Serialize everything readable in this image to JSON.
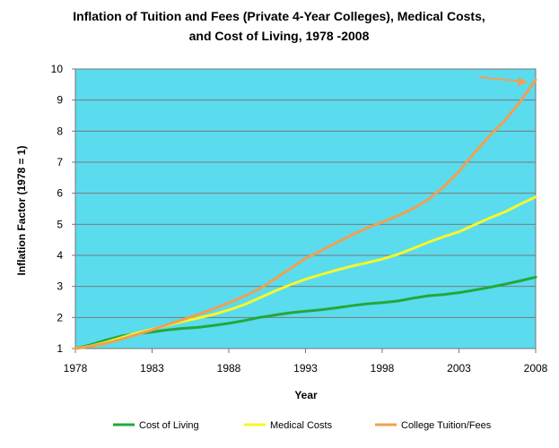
{
  "chart_data": {
    "type": "line",
    "title_line1": "Inflation of Tuition  and Fees (Private 4-Year Colleges), Medical Costs,",
    "title_line2": "and Cost of Living, 1978 -2008",
    "xlabel": "Year",
    "ylabel": "Inflation Factor (1978 = 1)",
    "xlim": [
      1978,
      2008
    ],
    "ylim": [
      1,
      10
    ],
    "xticks": [
      "1978",
      "1983",
      "1988",
      "1993",
      "1998",
      "2003",
      "2008"
    ],
    "yticks": [
      "1",
      "2",
      "3",
      "4",
      "5",
      "6",
      "7",
      "8",
      "9",
      "10"
    ],
    "grid": true,
    "legend_position": "bottom",
    "plot_background": "#5bdbee",
    "annotation": {
      "type": "arrow",
      "color": "#f4a460",
      "points_to": "College Tuition/Fees at 2008"
    },
    "series": [
      {
        "name": "Cost of Living",
        "color": "#22a83a",
        "x": [
          1978,
          1979,
          1980,
          1981,
          1982,
          1983,
          1984,
          1985,
          1986,
          1987,
          1988,
          1989,
          1990,
          1991,
          1992,
          1993,
          1994,
          1995,
          1996,
          1997,
          1998,
          1999,
          2000,
          2001,
          2002,
          2003,
          2004,
          2005,
          2006,
          2007,
          2008
        ],
        "values": [
          1.0,
          1.12,
          1.27,
          1.4,
          1.48,
          1.53,
          1.6,
          1.65,
          1.68,
          1.74,
          1.81,
          1.9,
          2.0,
          2.08,
          2.15,
          2.2,
          2.25,
          2.31,
          2.38,
          2.44,
          2.48,
          2.53,
          2.62,
          2.7,
          2.74,
          2.8,
          2.88,
          2.97,
          3.07,
          3.18,
          3.3
        ]
      },
      {
        "name": "Medical Costs",
        "color": "#f7f72a",
        "x": [
          1978,
          1979,
          1980,
          1981,
          1982,
          1983,
          1984,
          1985,
          1986,
          1987,
          1988,
          1989,
          1990,
          1991,
          1992,
          1993,
          1994,
          1995,
          1996,
          1997,
          1998,
          1999,
          2000,
          2001,
          2002,
          2003,
          2004,
          2005,
          2006,
          2007,
          2008
        ],
        "values": [
          1.0,
          1.08,
          1.2,
          1.35,
          1.5,
          1.62,
          1.75,
          1.87,
          1.98,
          2.1,
          2.24,
          2.41,
          2.63,
          2.85,
          3.05,
          3.23,
          3.38,
          3.52,
          3.65,
          3.76,
          3.88,
          4.03,
          4.22,
          4.42,
          4.6,
          4.76,
          4.98,
          5.2,
          5.4,
          5.65,
          5.88
        ]
      },
      {
        "name": "College Tuition/Fees",
        "color": "#f0a050",
        "x": [
          1978,
          1979,
          1980,
          1981,
          1982,
          1983,
          1984,
          1985,
          1986,
          1987,
          1988,
          1989,
          1990,
          1991,
          1992,
          1993,
          1994,
          1995,
          1996,
          1997,
          1998,
          1999,
          2000,
          2001,
          2002,
          2003,
          2004,
          2005,
          2006,
          2007,
          2008
        ],
        "values": [
          1.0,
          1.07,
          1.17,
          1.3,
          1.45,
          1.6,
          1.77,
          1.93,
          2.1,
          2.28,
          2.47,
          2.68,
          2.92,
          3.24,
          3.57,
          3.9,
          4.15,
          4.4,
          4.65,
          4.88,
          5.07,
          5.27,
          5.5,
          5.8,
          6.2,
          6.7,
          7.3,
          7.85,
          8.35,
          8.95,
          9.65
        ]
      }
    ]
  }
}
